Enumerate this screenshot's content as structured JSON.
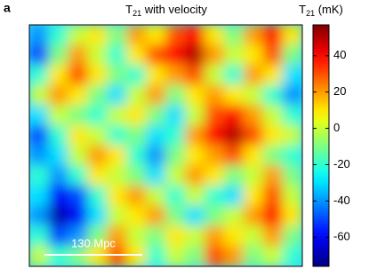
{
  "chart_data": {
    "type": "heatmap",
    "panel_label": "a",
    "title": {
      "base": "T",
      "subscript": "21",
      "rest": " with velocity"
    },
    "colorbar_label": {
      "base": "T",
      "subscript": "21",
      "rest": " (mK)"
    },
    "scale_bar_label": "130 Mpc",
    "colormap": "jet",
    "zlim": [
      -76,
      57
    ],
    "zticks": [
      -60,
      -40,
      -20,
      0,
      20,
      40
    ],
    "z": [
      [
        -40,
        -20,
        0,
        10,
        -10,
        20,
        10,
        30,
        40,
        10,
        -10,
        20,
        40,
        10
      ],
      [
        -50,
        -10,
        20,
        0,
        -20,
        10,
        30,
        40,
        50,
        20,
        0,
        10,
        30,
        -10
      ],
      [
        -20,
        10,
        30,
        10,
        -10,
        -20,
        10,
        20,
        30,
        0,
        -20,
        20,
        10,
        -30
      ],
      [
        0,
        20,
        10,
        -10,
        -30,
        0,
        20,
        -10,
        10,
        20,
        10,
        0,
        -20,
        -40
      ],
      [
        -30,
        0,
        -10,
        -20,
        0,
        10,
        -10,
        -30,
        0,
        30,
        40,
        20,
        0,
        -20
      ],
      [
        -50,
        -20,
        10,
        0,
        -20,
        -10,
        -30,
        -20,
        20,
        40,
        50,
        30,
        10,
        0
      ],
      [
        -40,
        -30,
        0,
        20,
        10,
        -20,
        -40,
        -10,
        10,
        20,
        30,
        10,
        -10,
        -20
      ],
      [
        -20,
        -40,
        -20,
        10,
        0,
        -10,
        -30,
        0,
        20,
        10,
        -10,
        0,
        20,
        -10
      ],
      [
        -30,
        -60,
        -50,
        -20,
        10,
        20,
        0,
        -20,
        0,
        -20,
        -30,
        10,
        30,
        0
      ],
      [
        -40,
        -70,
        -60,
        -30,
        0,
        10,
        20,
        -10,
        -30,
        -10,
        0,
        20,
        40,
        10
      ],
      [
        -20,
        -50,
        -40,
        -10,
        20,
        0,
        -10,
        10,
        0,
        20,
        10,
        0,
        20,
        -10
      ],
      [
        0,
        -20,
        -10,
        10,
        30,
        10,
        -20,
        0,
        -10,
        30,
        20,
        -10,
        0,
        -20
      ]
    ]
  }
}
